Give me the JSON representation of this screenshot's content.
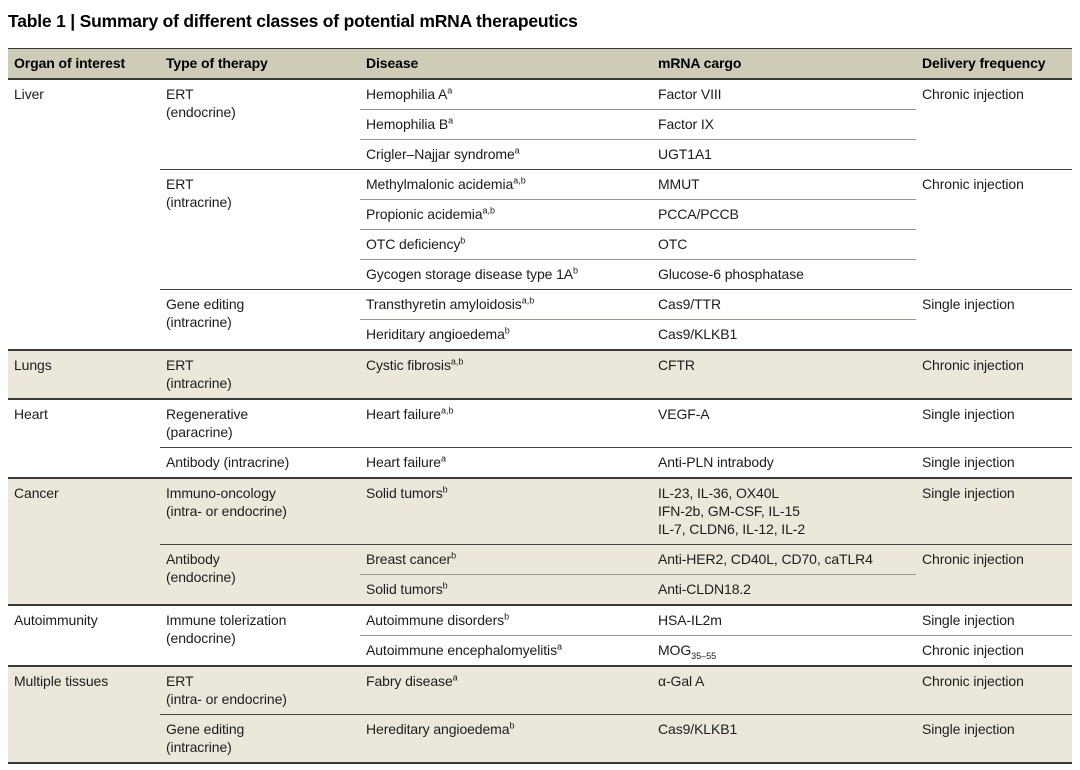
{
  "title": "Table 1 | Summary of different classes of potential mRNA therapeutics",
  "columns": {
    "organ": "Organ of interest",
    "therapy": "Type of therapy",
    "disease": "Disease",
    "cargo": "mRNA cargo",
    "delivery": "Delivery frequency"
  },
  "colors": {
    "header_bg": "#cecbb6",
    "band_bg": "#ebe8db",
    "rule_dark": "#3a3a35",
    "rule_light": "#97978d",
    "text": "#1c1c1c"
  },
  "rows": [
    {
      "organ": "Liver",
      "therapy": "ERT\n(endocrine)",
      "disease": "Hemophilia A",
      "dsup": "a",
      "cargo": "Factor VIII",
      "delivery": "Chronic injection"
    },
    {
      "disease": "Hemophilia B",
      "dsup": "a",
      "cargo": "Factor IX"
    },
    {
      "disease": "Crigler–Najjar syndrome",
      "dsup": "a",
      "cargo": "UGT1A1"
    },
    {
      "therapy": "ERT\n(intracrine)",
      "disease": "Methylmalonic acidemia",
      "dsup": "a,b",
      "cargo": "MMUT",
      "delivery": "Chronic injection"
    },
    {
      "disease": "Propionic acidemia",
      "dsup": "a,b",
      "cargo": "PCCA/PCCB"
    },
    {
      "disease": "OTC deficiency",
      "dsup": "b",
      "cargo": "OTC"
    },
    {
      "disease": "Gycogen storage disease type 1A",
      "dsup": "b",
      "cargo": "Glucose-6 phosphatase"
    },
    {
      "therapy": "Gene editing\n(intracrine)",
      "disease": "Transthyretin amyloidosis",
      "dsup": "a,b",
      "cargo": "Cas9/TTR",
      "delivery": "Single injection"
    },
    {
      "disease": "Heriditary angioedema",
      "dsup": "b",
      "cargo": "Cas9/KLKB1"
    },
    {
      "organ": "Lungs",
      "therapy": "ERT\n(intracrine)",
      "disease": "Cystic fibrosis",
      "dsup": "a,b",
      "cargo": "CFTR",
      "delivery": "Chronic injection"
    },
    {
      "organ": "Heart",
      "therapy": "Regenerative\n(paracrine)",
      "disease": "Heart failure",
      "dsup": "a,b",
      "cargo": "VEGF-A",
      "delivery": "Single injection"
    },
    {
      "therapy": "Antibody (intracrine)",
      "disease": "Heart failure",
      "dsup": "a",
      "cargo": "Anti-PLN intrabody",
      "delivery": "Single injection"
    },
    {
      "organ": "Cancer",
      "therapy": "Immuno-oncology\n(intra- or endocrine)",
      "disease": "Solid tumors",
      "dsup": "b",
      "cargo": "IL-23, IL-36, OX40L\nIFN-2b, GM-CSF, IL-15\nIL-7, CLDN6, IL-12, IL-2",
      "delivery": "Single injection"
    },
    {
      "therapy": "Antibody\n(endocrine)",
      "disease": "Breast cancer",
      "dsup": "b",
      "cargo": "Anti-HER2, CD40L, CD70, caTLR4",
      "delivery": "Chronic injection"
    },
    {
      "disease": "Solid tumors",
      "dsup": "b",
      "cargo": "Anti-CLDN18.2"
    },
    {
      "organ": "Autoimmunity",
      "therapy": "Immune tolerization\n(endocrine)",
      "disease": "Autoimmune disorders",
      "dsup": "b",
      "cargo": "HSA-IL2m",
      "delivery": "Single injection"
    },
    {
      "disease": "Autoimmune encephalomyelitis",
      "dsup": "a",
      "cargo": "MOG",
      "csub": "35–55",
      "delivery": "Chronic injection"
    },
    {
      "organ": "Multiple tissues",
      "therapy": "ERT\n(intra- or endocrine)",
      "disease": "Fabry disease",
      "dsup": "a",
      "cargo": "α-Gal A",
      "delivery": "Chronic injection"
    },
    {
      "therapy": "Gene editing\n(intracrine)",
      "disease": "Hereditary angioedema",
      "dsup": "b",
      "cargo": "Cas9/KLKB1",
      "delivery": "Single injection"
    }
  ]
}
